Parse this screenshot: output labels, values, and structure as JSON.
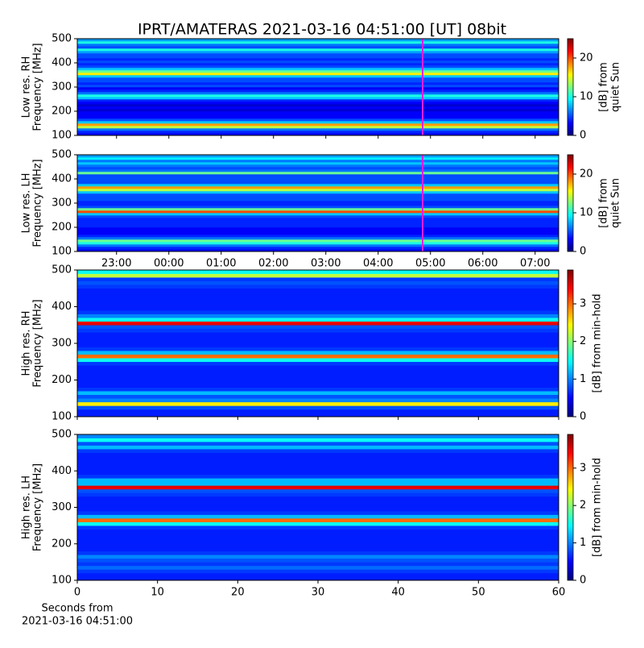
{
  "chart_data": [
    {
      "type": "heatmap",
      "title": "IPRT/AMATERAS 2021-03-16 04:51:00 [UT]   08bit",
      "ylabel": [
        "Low res. RH",
        "Frequency [MHz]"
      ],
      "colorbar_label": [
        "[dB] from",
        "quiet Sun"
      ],
      "xlim": [
        22.25,
        31.45
      ],
      "xticks": [
        23,
        24,
        25,
        26,
        27,
        28,
        29,
        30,
        31
      ],
      "xticklabels": false,
      "ylim": [
        100,
        500
      ],
      "yticks": [
        100,
        200,
        300,
        400,
        500
      ],
      "clim": [
        0,
        25
      ],
      "cticks": [
        0,
        10,
        20
      ],
      "colormap": "jet",
      "vline": 28.85,
      "vline_color": "#e020e0",
      "freq_bins": [
        100,
        110,
        120,
        130,
        140,
        150,
        160,
        170,
        180,
        190,
        200,
        210,
        220,
        230,
        240,
        250,
        260,
        270,
        280,
        290,
        300,
        310,
        320,
        330,
        340,
        350,
        360,
        370,
        380,
        390,
        400,
        410,
        420,
        430,
        440,
        450,
        460,
        470,
        480,
        490,
        500
      ],
      "values": [
        3,
        4,
        6,
        14,
        18,
        8,
        5,
        3,
        3,
        3,
        2,
        3,
        2,
        3,
        4,
        8,
        10,
        6,
        4,
        3,
        5,
        4,
        5,
        5,
        8,
        16,
        12,
        8,
        5,
        4,
        5,
        4,
        5,
        5,
        7,
        10,
        5,
        6,
        10,
        7
      ]
    },
    {
      "type": "heatmap",
      "ylabel": [
        "Low res. LH",
        "Frequency [MHz]"
      ],
      "colorbar_label": [
        "[dB] from",
        "quiet Sun"
      ],
      "xlim": [
        22.25,
        31.45
      ],
      "xticks": [
        {
          "value": 23,
          "label": "23:00"
        },
        {
          "value": 24,
          "label": "00:00"
        },
        {
          "value": 25,
          "label": "01:00"
        },
        {
          "value": 26,
          "label": "02:00"
        },
        {
          "value": 27,
          "label": "03:00"
        },
        {
          "value": 28,
          "label": "04:00"
        },
        {
          "value": 29,
          "label": "05:00"
        },
        {
          "value": 30,
          "label": "06:00"
        },
        {
          "value": 31,
          "label": "07:00"
        }
      ],
      "xticklabels": true,
      "ylim": [
        100,
        500
      ],
      "yticks": [
        100,
        200,
        300,
        400,
        500
      ],
      "clim": [
        0,
        25
      ],
      "cticks": [
        0,
        10,
        20
      ],
      "colormap": "jet",
      "vline": 28.85,
      "vline_color": "#e020e0",
      "freq_bins": [
        100,
        110,
        120,
        130,
        140,
        150,
        160,
        170,
        180,
        190,
        200,
        210,
        220,
        230,
        240,
        250,
        260,
        270,
        280,
        290,
        300,
        310,
        320,
        330,
        340,
        350,
        360,
        370,
        380,
        390,
        400,
        410,
        420,
        430,
        440,
        450,
        460,
        470,
        480,
        490,
        500
      ],
      "values": [
        3,
        4,
        6,
        10,
        12,
        6,
        4,
        3,
        3,
        3,
        4,
        4,
        4,
        4,
        5,
        8,
        20,
        12,
        5,
        4,
        4,
        5,
        5,
        5,
        8,
        14,
        18,
        8,
        5,
        5,
        5,
        5,
        12,
        6,
        5,
        6,
        8,
        6,
        9,
        7
      ]
    },
    {
      "type": "heatmap",
      "ylabel": [
        "High res. RH",
        "Frequency [MHz]"
      ],
      "colorbar_label": [
        "[dB] from min-hold"
      ],
      "xlim": [
        0,
        60
      ],
      "xticks": [
        0,
        10,
        20,
        30,
        40,
        50,
        60
      ],
      "xticklabels": false,
      "ylim": [
        100,
        500
      ],
      "yticks": [
        100,
        200,
        300,
        400,
        500
      ],
      "clim": [
        0,
        3.9
      ],
      "cticks": [
        0,
        1,
        2,
        3
      ],
      "colormap": "jet",
      "freq_bins": [
        100,
        110,
        120,
        130,
        140,
        150,
        160,
        170,
        180,
        190,
        200,
        210,
        220,
        230,
        240,
        250,
        260,
        270,
        280,
        290,
        300,
        310,
        320,
        330,
        340,
        350,
        360,
        370,
        380,
        390,
        400,
        410,
        420,
        430,
        440,
        450,
        460,
        470,
        480,
        490,
        500
      ],
      "values": [
        0.6,
        0.6,
        0.8,
        2.5,
        1.0,
        0.8,
        1.2,
        0.7,
        0.6,
        0.6,
        0.6,
        0.6,
        0.6,
        0.6,
        0.7,
        1.5,
        3.0,
        1.2,
        0.7,
        0.6,
        0.6,
        0.6,
        0.6,
        0.7,
        0.8,
        3.5,
        1.5,
        1.0,
        0.7,
        0.6,
        0.6,
        0.6,
        0.6,
        0.6,
        0.6,
        0.7,
        0.8,
        0.7,
        2.2,
        1.5
      ]
    },
    {
      "type": "heatmap",
      "ylabel": [
        "High res. LH",
        "Frequency [MHz]"
      ],
      "colorbar_label": [
        "[dB] from min-hold"
      ],
      "xlim": [
        0,
        60
      ],
      "xticks": [
        0,
        10,
        20,
        30,
        40,
        50,
        60
      ],
      "xticklabels": true,
      "xlabel": [
        "Seconds from",
        "2021-03-16 04:51:00"
      ],
      "ylim": [
        100,
        500
      ],
      "yticks": [
        100,
        200,
        300,
        400,
        500
      ],
      "clim": [
        0,
        3.9
      ],
      "cticks": [
        0,
        1,
        2,
        3
      ],
      "colormap": "jet",
      "freq_bins": [
        100,
        110,
        120,
        130,
        140,
        150,
        160,
        170,
        180,
        190,
        200,
        210,
        220,
        230,
        240,
        250,
        260,
        270,
        280,
        290,
        300,
        310,
        320,
        330,
        340,
        350,
        360,
        370,
        380,
        390,
        400,
        410,
        420,
        430,
        440,
        450,
        460,
        470,
        480,
        490,
        500
      ],
      "values": [
        0.6,
        0.6,
        0.7,
        0.9,
        0.7,
        0.8,
        1.0,
        0.7,
        0.6,
        0.6,
        0.6,
        0.6,
        0.6,
        0.6,
        0.7,
        1.5,
        3.0,
        1.2,
        0.7,
        0.6,
        0.6,
        0.6,
        0.6,
        0.7,
        0.8,
        3.5,
        1.2,
        1.2,
        0.7,
        0.6,
        0.6,
        0.6,
        0.6,
        0.6,
        0.6,
        0.7,
        1.2,
        0.8,
        1.5,
        1.0
      ]
    }
  ]
}
